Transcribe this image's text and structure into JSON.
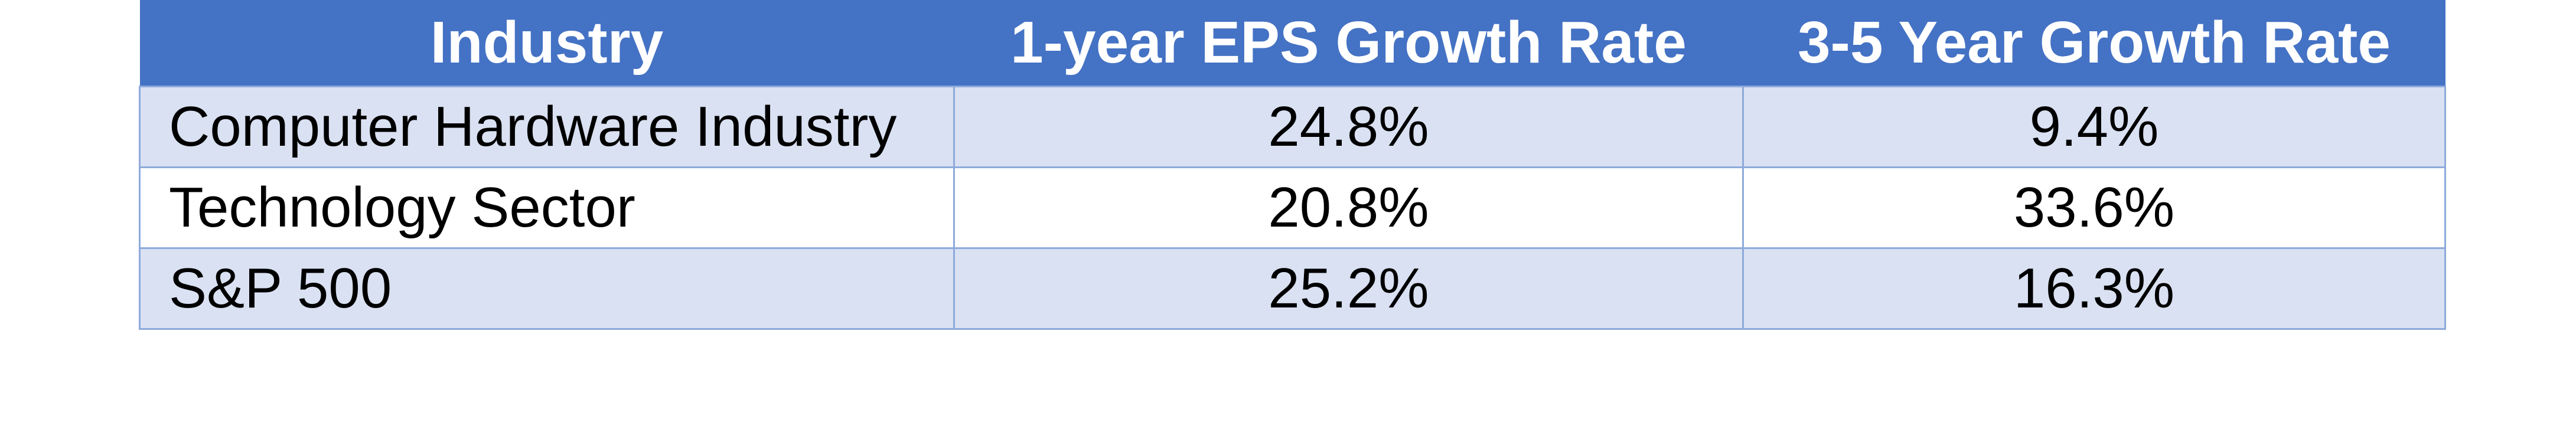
{
  "table": {
    "headers": [
      "Industry",
      "1-year EPS Growth Rate",
      "3-5 Year Growth Rate"
    ],
    "rows": [
      [
        "Computer Hardware Industry",
        "24.8%",
        "9.4%"
      ],
      [
        "Technology Sector",
        "20.8%",
        "33.6%"
      ],
      [
        "S&P 500",
        "25.2%",
        "16.3%"
      ]
    ]
  },
  "colors": {
    "header_bg": "#4472c4",
    "header_text": "#ffffff",
    "band_row_bg": "#d9e1f2",
    "plain_row_bg": "#ffffff",
    "border": "#8eaadb"
  }
}
